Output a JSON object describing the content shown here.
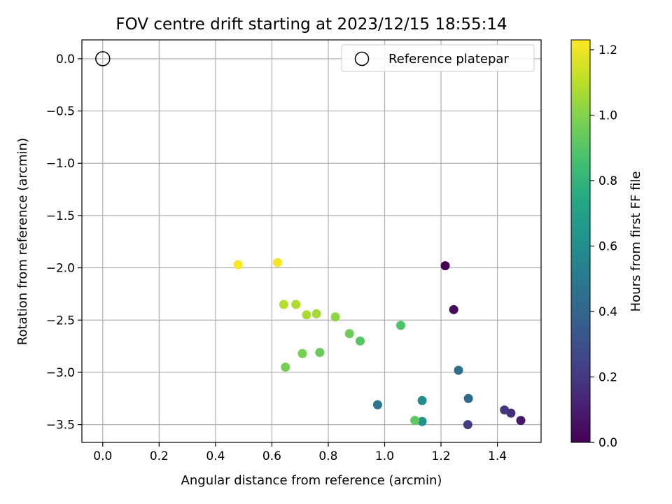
{
  "chart_data": {
    "type": "scatter",
    "title": "FOV centre drift starting at 2023/12/15 18:55:14",
    "xlabel": "Angular distance from reference (arcmin)",
    "ylabel": "Rotation from reference (arcmin)",
    "xlim": [
      -0.074,
      1.555
    ],
    "ylim": [
      -3.67,
      0.18
    ],
    "xticks": [
      0.0,
      0.2,
      0.4,
      0.6,
      0.8,
      1.0,
      1.2,
      1.4
    ],
    "xtick_labels": [
      "0.0",
      "0.2",
      "0.4",
      "0.6",
      "0.8",
      "1.0",
      "1.2",
      "1.4"
    ],
    "yticks": [
      0.0,
      -0.5,
      -1.0,
      -1.5,
      -2.0,
      -2.5,
      -3.0,
      -3.5
    ],
    "ytick_labels": [
      "0.0",
      "−0.5",
      "−1.0",
      "−1.5",
      "−2.0",
      "−2.5",
      "−3.0",
      "−3.5"
    ],
    "grid": true,
    "legend": {
      "placement": "top-right",
      "entries": [
        "Reference platepar"
      ]
    },
    "reference_point": {
      "x": 0.0,
      "y": 0.0,
      "marker": "open-circle"
    },
    "colorbar": {
      "label": "Hours from first FF file",
      "colormap": "viridis",
      "range": [
        0.0,
        1.23
      ],
      "ticks": [
        0.0,
        0.2,
        0.4,
        0.6,
        0.8,
        1.0,
        1.2
      ],
      "tick_labels": [
        "0.0",
        "0.2",
        "0.4",
        "0.6",
        "0.8",
        "1.0",
        "1.2"
      ]
    },
    "points": [
      {
        "x": 1.215,
        "y": -1.98,
        "hours": 0.0
      },
      {
        "x": 1.245,
        "y": -2.4,
        "hours": 0.03
      },
      {
        "x": 1.483,
        "y": -3.46,
        "hours": 0.08
      },
      {
        "x": 1.448,
        "y": -3.39,
        "hours": 0.16
      },
      {
        "x": 1.425,
        "y": -3.36,
        "hours": 0.2
      },
      {
        "x": 1.295,
        "y": -3.5,
        "hours": 0.22
      },
      {
        "x": 1.297,
        "y": -3.25,
        "hours": 0.42
      },
      {
        "x": 1.262,
        "y": -2.98,
        "hours": 0.45
      },
      {
        "x": 0.975,
        "y": -3.31,
        "hours": 0.48
      },
      {
        "x": 1.133,
        "y": -3.27,
        "hours": 0.6
      },
      {
        "x": 1.133,
        "y": -3.47,
        "hours": 0.62
      },
      {
        "x": 1.057,
        "y": -2.55,
        "hours": 0.88
      },
      {
        "x": 0.913,
        "y": -2.7,
        "hours": 0.9
      },
      {
        "x": 1.107,
        "y": -3.46,
        "hours": 0.92
      },
      {
        "x": 0.77,
        "y": -2.81,
        "hours": 0.94
      },
      {
        "x": 0.875,
        "y": -2.63,
        "hours": 0.96
      },
      {
        "x": 0.708,
        "y": -2.82,
        "hours": 0.98
      },
      {
        "x": 0.648,
        "y": -2.95,
        "hours": 0.97
      },
      {
        "x": 0.825,
        "y": -2.47,
        "hours": 1.02
      },
      {
        "x": 0.758,
        "y": -2.44,
        "hours": 1.06
      },
      {
        "x": 0.723,
        "y": -2.45,
        "hours": 1.07
      },
      {
        "x": 0.685,
        "y": -2.35,
        "hours": 1.08
      },
      {
        "x": 0.642,
        "y": -2.35,
        "hours": 1.09
      },
      {
        "x": 0.62,
        "y": -1.95,
        "hours": 1.21
      },
      {
        "x": 0.48,
        "y": -1.97,
        "hours": 1.23
      }
    ]
  }
}
